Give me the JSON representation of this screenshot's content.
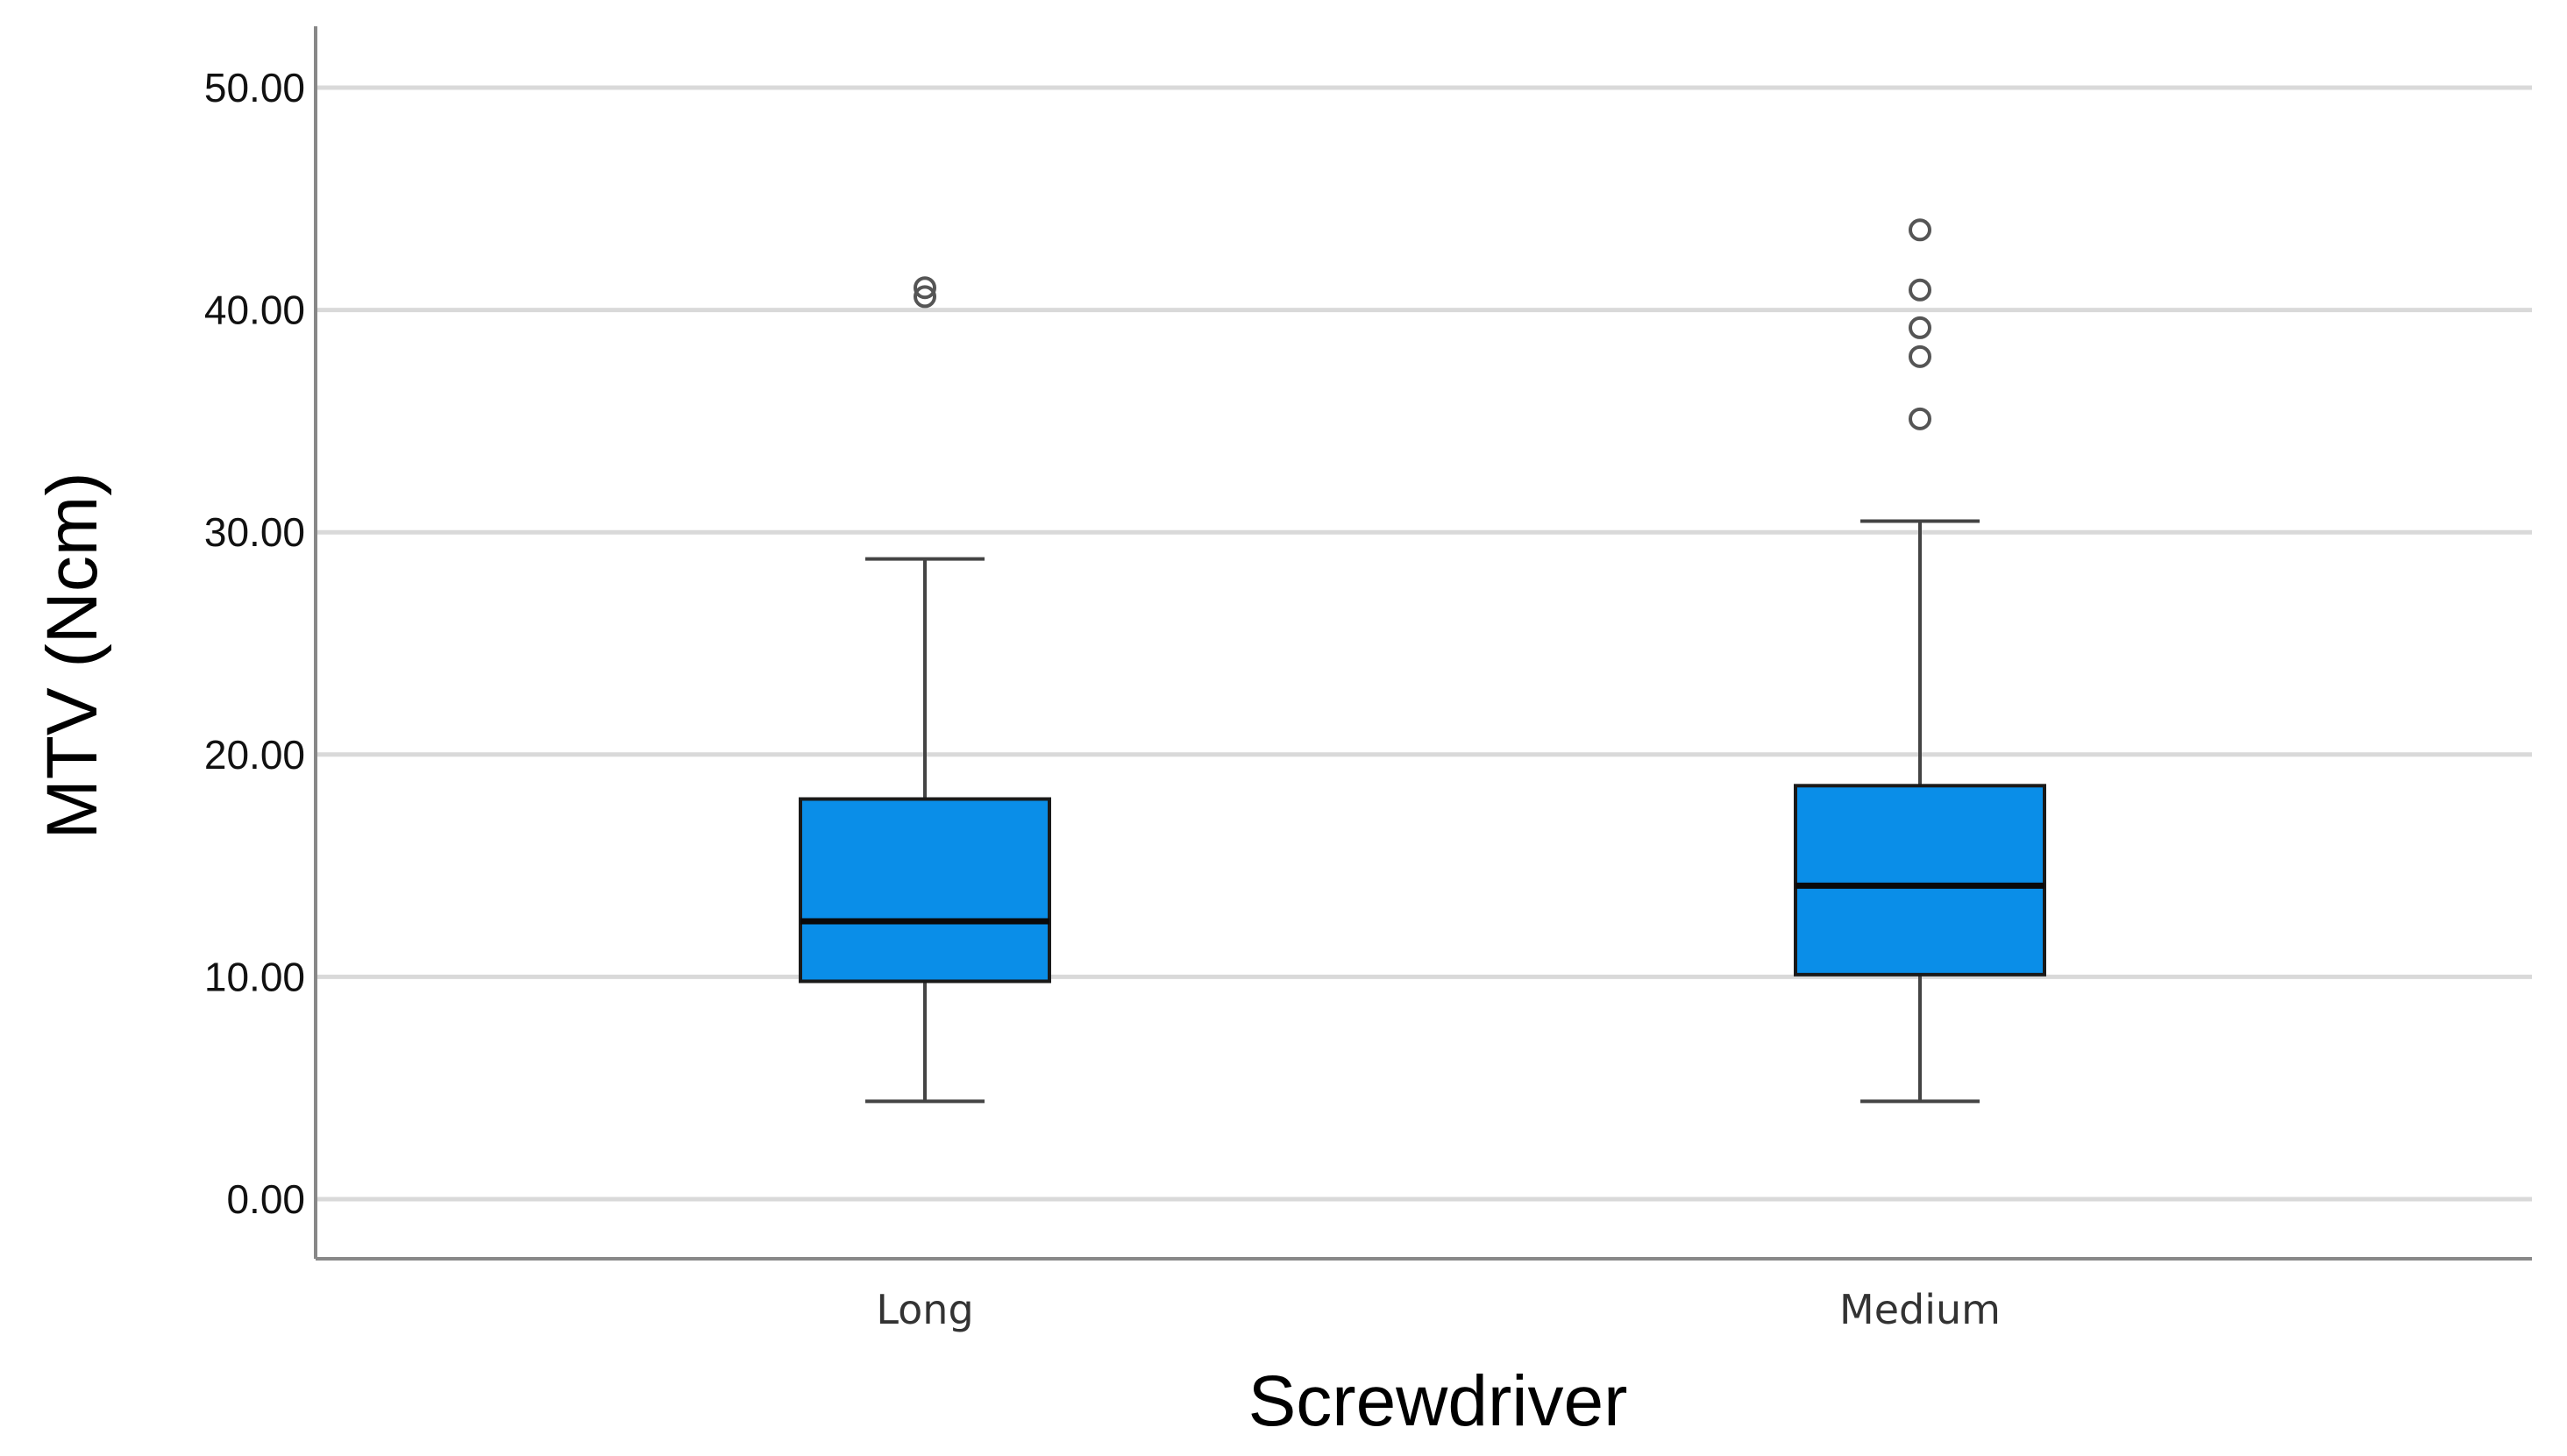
{
  "chart_data": {
    "type": "box",
    "xlabel": "Screwdriver",
    "ylabel": "MTV (Ncm)",
    "ylim": [
      -2.8,
      55.0
    ],
    "yticks": [
      0,
      10,
      20,
      30,
      40,
      50
    ],
    "ytick_labels": [
      "0.00",
      "10.00",
      "20.00",
      "30.00",
      "40.00",
      "50.00"
    ],
    "grid": "horizontal",
    "categories": [
      "Long",
      "Medium"
    ],
    "boxes": [
      {
        "category": "Long",
        "whisker_low": 4.4,
        "q1": 9.8,
        "median": 12.5,
        "q3": 18.0,
        "whisker_high": 28.8,
        "outliers": [
          40.6,
          41.0
        ]
      },
      {
        "category": "Medium",
        "whisker_low": 4.4,
        "q1": 10.1,
        "median": 14.1,
        "q3": 18.6,
        "whisker_high": 30.5,
        "outliers": [
          35.1,
          37.9,
          39.2,
          40.9,
          43.6
        ]
      }
    ],
    "colors": {
      "box_fill": "#0a8ee8",
      "box_stroke": "#1a1a1a",
      "grid": "#d9d9d9",
      "axis": "#888888",
      "outlier": "#555555"
    }
  }
}
